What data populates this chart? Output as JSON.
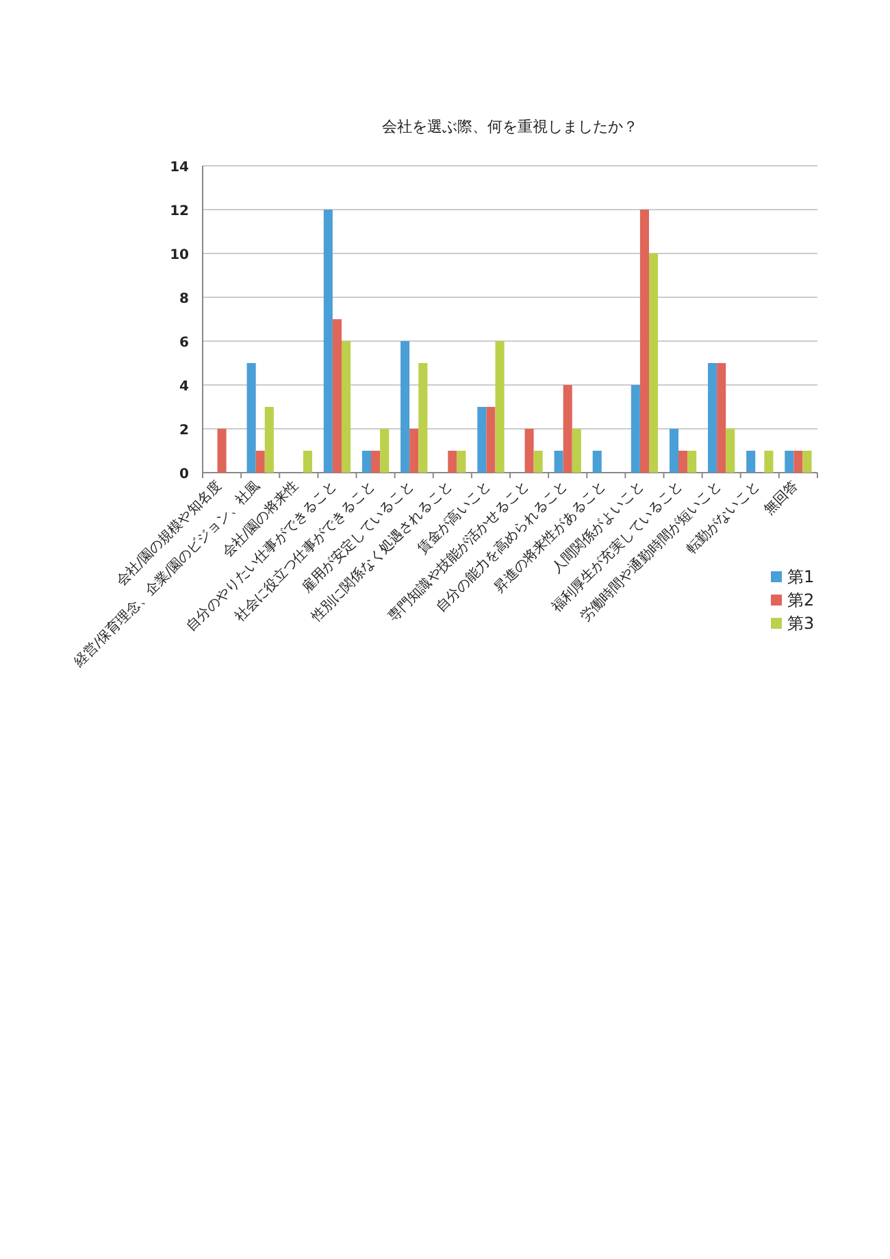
{
  "chart_data": {
    "type": "bar",
    "title": "会社を選ぶ際、何を重視しましたか？",
    "categories": [
      "会社/園の規模や知名度",
      "経営/保育理念、企業/園のビジョン、社風",
      "会社/園の将来性",
      "自分のやりたい仕事ができること",
      "社会に役立つ仕事ができること",
      "雇用が安定していること",
      "性別に関係なく処遇されること",
      "賃金が高いこと",
      "専門知識や技能が活かせること",
      "自分の能力を高められること",
      "昇進の将来性があること",
      "人間関係がよいこと",
      "福利厚生が充実していること",
      "労働時間や通勤時間が短いこと",
      "転勤がないこと",
      "無回答"
    ],
    "series": [
      {
        "name": "第1",
        "color": "#4a9fd6",
        "values": [
          null,
          5,
          null,
          12,
          1,
          6,
          null,
          3,
          null,
          1,
          1,
          4,
          2,
          5,
          1,
          1
        ]
      },
      {
        "name": "第2",
        "color": "#e0665a",
        "values": [
          2,
          1,
          null,
          7,
          1,
          2,
          1,
          3,
          2,
          4,
          null,
          12,
          1,
          5,
          null,
          1
        ]
      },
      {
        "name": "第3",
        "color": "#bdd04c",
        "values": [
          null,
          3,
          1,
          6,
          2,
          5,
          1,
          6,
          1,
          2,
          null,
          10,
          1,
          2,
          1,
          1
        ]
      }
    ],
    "ylim": [
      0,
      14
    ],
    "yticks": [
      0,
      2,
      4,
      6,
      8,
      10,
      12,
      14
    ],
    "grid": "y",
    "legend": "right"
  }
}
